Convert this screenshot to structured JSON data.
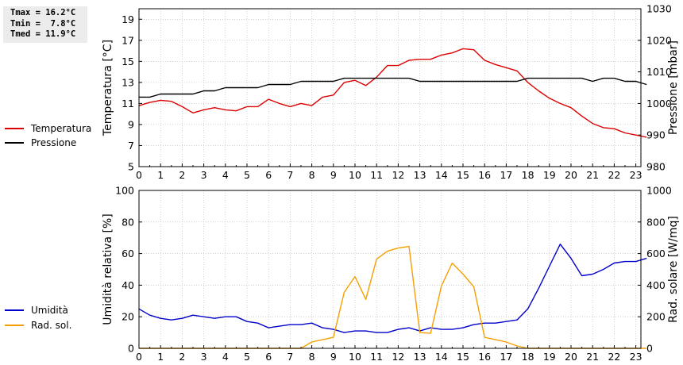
{
  "stats": {
    "tmax": "Tmax = 16.2°C",
    "tmin": "Tmin =  7.8°C",
    "tmed": "Tmed = 11.9°C"
  },
  "chart_data": [
    {
      "type": "line",
      "x_range": [
        0,
        24
      ],
      "x_ticks": [
        "0",
        "1",
        "2",
        "3",
        "4",
        "5",
        "6",
        "7",
        "8",
        "9",
        "10",
        "11",
        "12",
        "13",
        "14",
        "15",
        "16",
        "17",
        "18",
        "19",
        "20",
        "21",
        "22",
        "23"
      ],
      "ylabel": "Temperatura [°C]",
      "ylim": [
        5,
        20
      ],
      "y_ticks": [
        "5",
        "7",
        "9",
        "11",
        "13",
        "15",
        "17",
        "19"
      ],
      "y2label": "Pressione [mbar]",
      "y2lim": [
        980,
        1030
      ],
      "y2_ticks": [
        "980",
        "990",
        "1000",
        "1010",
        "1020",
        "1030"
      ],
      "grid": true,
      "legend_position": "left",
      "series": [
        {
          "name": "Temperatura",
          "axis": "left",
          "color": "#dd0000",
          "x": [
            0,
            0.5,
            1,
            1.5,
            2,
            2.5,
            3,
            3.5,
            4,
            4.5,
            5,
            5.5,
            6,
            6.5,
            7,
            7.5,
            8,
            8.5,
            9,
            9.5,
            10,
            10.5,
            11,
            11.5,
            12,
            12.5,
            13,
            13.5,
            14,
            14.5,
            15,
            15.5,
            16,
            16.5,
            17,
            17.5,
            18,
            18.5,
            19,
            19.5,
            20,
            20.5,
            21,
            21.5,
            22,
            22.5,
            23,
            23.5
          ],
          "values": [
            10.8,
            11.1,
            11.3,
            11.2,
            10.7,
            10.1,
            10.4,
            10.6,
            10.4,
            10.3,
            10.7,
            10.7,
            11.4,
            11.0,
            10.7,
            11.0,
            10.8,
            11.6,
            11.8,
            13.0,
            13.2,
            12.7,
            13.5,
            14.6,
            14.6,
            15.1,
            15.2,
            15.2,
            15.6,
            15.8,
            16.2,
            16.1,
            15.1,
            14.7,
            14.4,
            14.1,
            13.0,
            12.2,
            11.5,
            11.0,
            10.6,
            9.8,
            9.1,
            8.7,
            8.6,
            8.2,
            8.0,
            7.8
          ]
        },
        {
          "name": "Pressione",
          "axis": "right",
          "color": "#000000",
          "x": [
            0,
            0.5,
            1,
            1.5,
            2,
            2.5,
            3,
            3.5,
            4,
            4.5,
            5,
            5.5,
            6,
            6.5,
            7,
            7.5,
            8,
            8.5,
            9,
            9.5,
            10,
            10.5,
            11,
            11.5,
            12,
            12.5,
            13,
            13.5,
            14,
            14.5,
            15,
            15.5,
            16,
            16.5,
            17,
            17.5,
            18,
            18.5,
            19,
            19.5,
            20,
            20.5,
            21,
            21.5,
            22,
            22.5,
            23,
            23.5
          ],
          "values": [
            1002,
            1002,
            1003,
            1003,
            1003,
            1003,
            1004,
            1004,
            1005,
            1005,
            1005,
            1005,
            1006,
            1006,
            1006,
            1007,
            1007,
            1007,
            1007,
            1008,
            1008,
            1008,
            1008,
            1008,
            1008,
            1008,
            1007,
            1007,
            1007,
            1007,
            1007,
            1007,
            1007,
            1007,
            1007,
            1007,
            1008,
            1008,
            1008,
            1008,
            1008,
            1008,
            1007,
            1008,
            1008,
            1007,
            1007,
            1006
          ]
        }
      ]
    },
    {
      "type": "line",
      "x_range": [
        0,
        24
      ],
      "x_ticks": [
        "0",
        "1",
        "2",
        "3",
        "4",
        "5",
        "6",
        "7",
        "8",
        "9",
        "10",
        "11",
        "12",
        "13",
        "14",
        "15",
        "16",
        "17",
        "18",
        "19",
        "20",
        "21",
        "22",
        "23"
      ],
      "ylabel": "Umidità relativa [%]",
      "ylim": [
        0,
        100
      ],
      "y_ticks": [
        "0",
        "20",
        "40",
        "60",
        "80",
        "100"
      ],
      "y2label": "Rad. solare [W/mq]",
      "y2lim": [
        0,
        1000
      ],
      "y2_ticks": [
        "0",
        "200",
        "400",
        "600",
        "800",
        "1000"
      ],
      "grid": true,
      "legend_position": "left",
      "series": [
        {
          "name": "Umidità",
          "axis": "left",
          "color": "#0000cc",
          "x": [
            0,
            0.5,
            1,
            1.5,
            2,
            2.5,
            3,
            3.5,
            4,
            4.5,
            5,
            5.5,
            6,
            6.5,
            7,
            7.5,
            8,
            8.5,
            9,
            9.5,
            10,
            10.5,
            11,
            11.5,
            12,
            12.5,
            13,
            13.5,
            14,
            14.5,
            15,
            15.5,
            16,
            16.5,
            17,
            17.5,
            18,
            18.5,
            19,
            19.5,
            20,
            20.5,
            21,
            21.5,
            22,
            22.5,
            23,
            23.5
          ],
          "values": [
            25,
            21,
            19,
            18,
            19,
            21,
            20,
            19,
            20,
            20,
            17,
            16,
            13,
            14,
            15,
            15,
            16,
            13,
            12,
            10,
            11,
            11,
            10,
            10,
            12,
            13,
            11,
            13,
            12,
            12,
            13,
            15,
            16,
            16,
            17,
            18,
            25,
            38,
            52,
            66,
            57,
            46,
            47,
            50,
            54,
            55,
            55,
            57
          ]
        },
        {
          "name": "Rad. sol.",
          "axis": "right",
          "color": "#f5a000",
          "x": [
            0,
            1,
            2,
            3,
            4,
            5,
            6,
            7,
            7.5,
            8,
            8.5,
            9,
            9.5,
            10,
            10.5,
            11,
            11.5,
            12,
            12.5,
            13,
            13.5,
            14,
            14.5,
            15,
            15.5,
            16,
            16.5,
            17,
            17.5,
            18,
            19,
            20,
            21,
            22,
            23,
            23.5
          ],
          "values": [
            0,
            0,
            0,
            0,
            0,
            0,
            0,
            0,
            0,
            40,
            55,
            70,
            355,
            455,
            310,
            565,
            615,
            635,
            645,
            100,
            95,
            395,
            540,
            470,
            390,
            70,
            55,
            40,
            15,
            0,
            0,
            0,
            0,
            0,
            0,
            0
          ]
        }
      ]
    }
  ]
}
